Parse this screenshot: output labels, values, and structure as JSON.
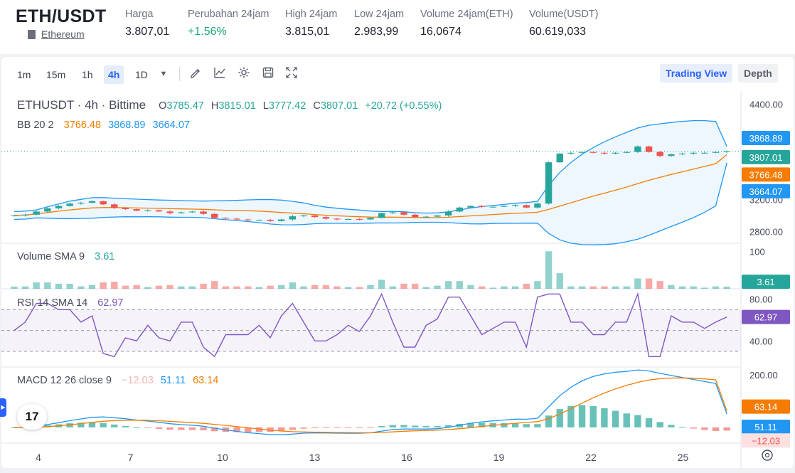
{
  "ticker": {
    "pair": "ETH/USDT",
    "name": "Ethereum",
    "stats": [
      {
        "label": "Harga",
        "value": "3.807,01"
      },
      {
        "label": "Perubahan 24jam",
        "value": "+1.56%"
      },
      {
        "label": "High 24jam",
        "value": "3.815,01"
      },
      {
        "label": "Low 24jam",
        "value": "2.983,99"
      },
      {
        "label": "Volume 24jam(ETH)",
        "value": "16,0674"
      },
      {
        "label": "Volume(USDT)",
        "value": "60.619,033"
      }
    ]
  },
  "toolbar": {
    "timeframes": [
      "1m",
      "15m",
      "1h",
      "4h",
      "1D"
    ],
    "active_timeframe": "4h",
    "icons": [
      "chevron-down-icon",
      "pen-icon",
      "indicator-icon",
      "gear-icon",
      "save-icon",
      "fullscreen-icon"
    ],
    "views": [
      "Trading View",
      "Depth"
    ],
    "active_view": "Trading View"
  },
  "legend": {
    "symbol": "ETHUSDT · 4h · Bittime",
    "o_label": "O",
    "o": "3785.47",
    "h_label": "H",
    "h": "3815.01",
    "l_label": "L",
    "l": "3777.42",
    "c_label": "C",
    "c": "3807.01",
    "change": "+20.72 (+0.55%)",
    "bb_label": "BB 20 2",
    "bb_mid": "3766.48",
    "bb_upper": "3868.89",
    "bb_lower": "3664.07",
    "vol_label": "Volume SMA 9",
    "vol_value": "3.61",
    "rsi_label": "RSI 14 SMA 14",
    "rsi_value": "62.97",
    "macd_label": "MACD 12 26 close 9",
    "macd_hist": "−12.03",
    "macd_line": "51.11",
    "macd_signal": "63.14"
  },
  "axis": {
    "price_ticks": [
      "4400.00",
      "3200.00",
      "2800.00"
    ],
    "volume_tick": "100",
    "rsi_ticks": [
      "80.00",
      "40.00"
    ],
    "macd_tick": "200.00",
    "date_ticks": [
      "4",
      "7",
      "10",
      "13",
      "16",
      "19",
      "22",
      "25"
    ]
  },
  "badges": {
    "price": [
      "3868.89",
      "3807.01",
      "3766.48",
      "3664.07"
    ],
    "volume": "3.61",
    "rsi": "62.97",
    "macd": [
      "63.14",
      "51.11",
      "−12.03"
    ]
  },
  "colors": {
    "up": "#26a69a",
    "down": "#ef5350",
    "bb_band": "#2196f3",
    "bb_basis": "#f57c00",
    "rsi": "#7e57c2",
    "macd_line": "#2196f3",
    "macd_signal": "#f57c00",
    "accent": "#2962ff"
  },
  "chart_data": {
    "type": "candlestick",
    "title": "ETHUSDT · 4h · Bittime",
    "x_ticks": [
      "4",
      "7",
      "10",
      "13",
      "16",
      "19",
      "22",
      "25"
    ],
    "price_axis_range": [
      2650,
      4550
    ],
    "close_approx": [
      3000,
      3010,
      3050,
      3090,
      3120,
      3150,
      3160,
      3180,
      3140,
      3095,
      3080,
      3060,
      3065,
      3050,
      3030,
      3040,
      3050,
      3020,
      2970,
      2960,
      2950,
      2940,
      2945,
      2930,
      2950,
      2990,
      3000,
      2980,
      2960,
      2950,
      2955,
      2950,
      2970,
      3030,
      3040,
      3010,
      2980,
      2985,
      3000,
      3050,
      3100,
      3120,
      3110,
      3110,
      3120,
      3130,
      3100,
      3150,
      3670,
      3780,
      3790,
      3800,
      3790,
      3780,
      3790,
      3800,
      3870,
      3800,
      3750,
      3770,
      3780,
      3790,
      3790,
      3800,
      3807
    ],
    "bb_last": {
      "basis": 3766.48,
      "upper": 3868.89,
      "lower": 3664.07
    },
    "volume": {
      "sma_length": 9,
      "last": 3.61,
      "axis_tick": 100
    },
    "rsi": {
      "length": 14,
      "last": 62.97,
      "bands": [
        70,
        30
      ],
      "axis_ticks": [
        80,
        40
      ]
    },
    "macd": {
      "fast": 12,
      "slow": 26,
      "signal": 9,
      "histogram": -12.03,
      "macd": 51.11,
      "signal_value": 63.14,
      "axis_tick": 200
    }
  }
}
